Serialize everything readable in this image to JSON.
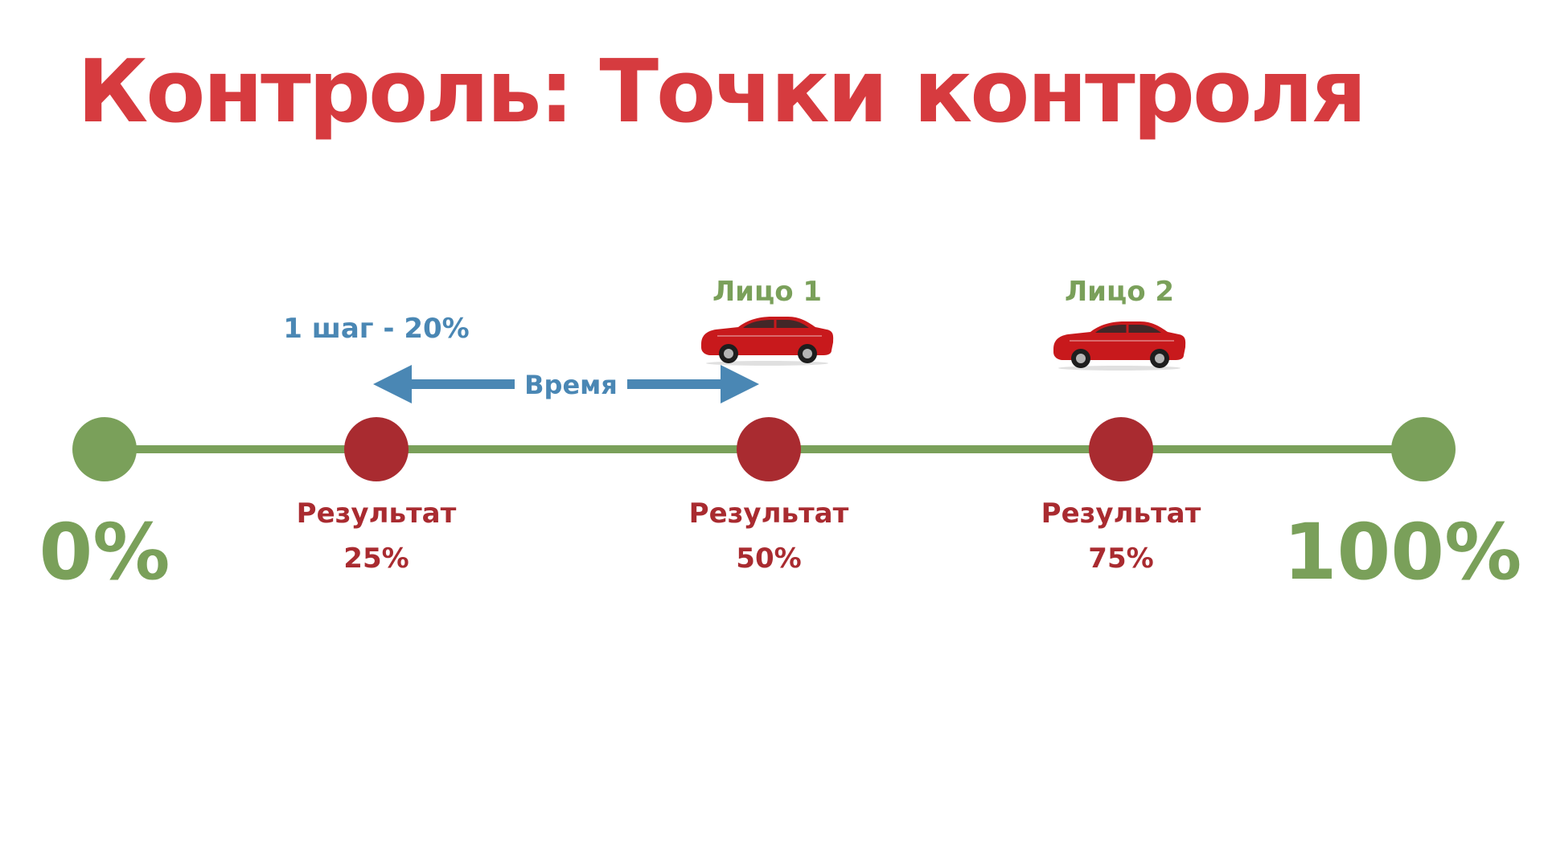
{
  "title": "Контроль: Точки контроля",
  "colors": {
    "title": "#d63b3f",
    "line": "#7aa05a",
    "endpoint": "#7aa05a",
    "checkpoint": "#a92b30",
    "checkpoint_label": "#a92b30",
    "person_label": "#7aa05a",
    "arrow": "#4a87b4",
    "car_body": "#c8191c"
  },
  "endpoints": {
    "start_label": "0%",
    "end_label": "100%"
  },
  "checkpoints": [
    {
      "label": "Результат",
      "value": "25%"
    },
    {
      "label": "Результат",
      "value": "50%"
    },
    {
      "label": "Результат",
      "value": "75%"
    }
  ],
  "people": [
    {
      "label": "Лицо 1",
      "icon": "red-sports-car-icon"
    },
    {
      "label": "Лицо 2",
      "icon": "red-sports-car-icon"
    }
  ],
  "step_label": "1 шаг - 20%",
  "time_label": "Время"
}
